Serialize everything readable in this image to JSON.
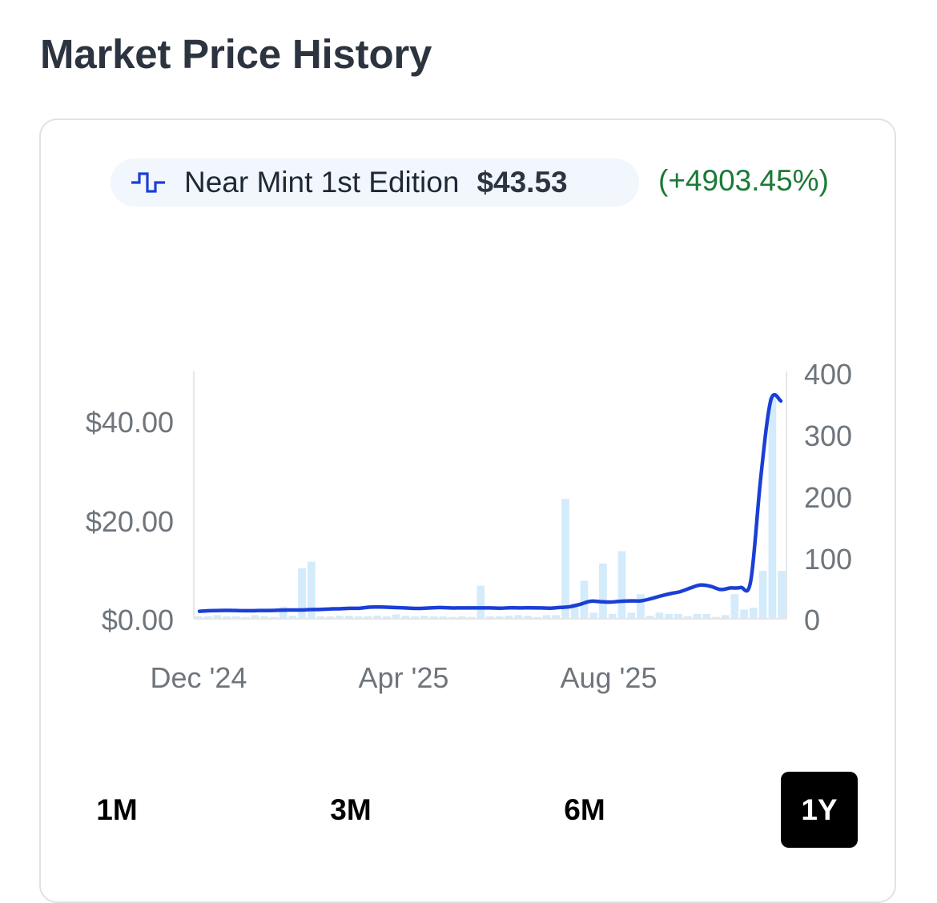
{
  "page_title": "Market Price History",
  "legend": {
    "series_name": "Near Mint 1st Edition",
    "price": "$43.53",
    "change": "(+4903.45%)",
    "icon": "step-line-icon",
    "line_color": "#1a3fd6",
    "change_color": "#1b7a36"
  },
  "chart_data": {
    "type": "line",
    "x_tick_labels": [
      "Dec '24",
      "Apr '25",
      "Aug '25"
    ],
    "y_left_tick_labels": [
      "$0.00",
      "$20.00",
      "$40.00"
    ],
    "y_right_tick_labels": [
      "0",
      "100",
      "200",
      "300",
      "400"
    ],
    "ylim_left": [
      0,
      50
    ],
    "ylim_right": [
      0,
      400
    ],
    "grid": false,
    "series": [
      {
        "type": "line",
        "axis": "left",
        "color": "#1a3fd6",
        "values": [
          0.87,
          0.98,
          1.03,
          1.05,
          1.01,
          0.98,
          1.03,
          1.03,
          1.08,
          1.13,
          1.13,
          1.21,
          1.26,
          1.35,
          1.38,
          1.47,
          1.5,
          1.71,
          1.73,
          1.68,
          1.61,
          1.5,
          1.45,
          1.55,
          1.63,
          1.55,
          1.55,
          1.55,
          1.55,
          1.55,
          1.5,
          1.58,
          1.55,
          1.58,
          1.55,
          1.5,
          1.65,
          1.81,
          2.3,
          2.9,
          2.82,
          2.73,
          2.9,
          2.98,
          2.98,
          3.39,
          3.96,
          4.45,
          4.86,
          5.6,
          6.18,
          5.93,
          5.27,
          5.6,
          5.68,
          7.0,
          28.0,
          43.53,
          43.4
        ]
      },
      {
        "type": "bar",
        "axis": "right",
        "color": "#d3ebfb",
        "values": [
          4,
          4,
          6,
          4,
          4,
          3,
          6,
          4,
          3,
          20,
          5,
          82,
          93,
          4,
          4,
          5,
          5,
          4,
          4,
          5,
          4,
          7,
          5,
          4,
          5,
          4,
          4,
          3,
          4,
          3,
          54,
          4,
          4,
          5,
          6,
          5,
          3,
          6,
          6,
          195,
          25,
          62,
          10,
          90,
          8,
          110,
          10,
          40,
          5,
          10,
          8,
          8,
          4,
          8,
          8,
          3,
          6,
          40,
          15,
          18,
          78,
          360,
          78
        ]
      }
    ]
  },
  "range_buttons": [
    {
      "label": "1M",
      "active": false
    },
    {
      "label": "3M",
      "active": false
    },
    {
      "label": "6M",
      "active": false
    },
    {
      "label": "1Y",
      "active": true
    }
  ]
}
